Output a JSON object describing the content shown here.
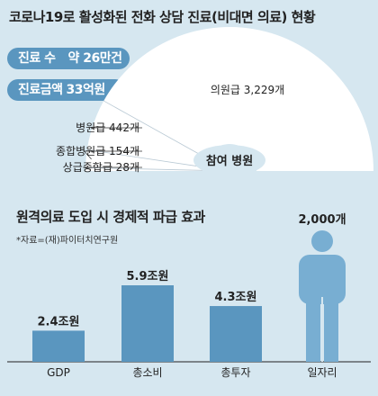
{
  "top": {
    "title": "코로나19로 활성화된 전화 상담 진료(비대면 의료) 현황",
    "pills": [
      {
        "label": "진료 수",
        "value": "약 26만건"
      },
      {
        "label": "진료금액",
        "value": "33억원"
      }
    ]
  },
  "bottom": {
    "title": "원격의료 도입 시 경제적 파급 효과",
    "source": "*자료=(재)파이터치연구원"
  },
  "colors": {
    "background": "#d6e7f0",
    "accent": "#5a96bf",
    "person": "#78aed2",
    "fan": "#ffffff"
  },
  "chart_data": [
    {
      "type": "pie",
      "subtype": "half-donut",
      "center_label": "참여 병원",
      "slices": [
        {
          "name": "의원급",
          "value": 3229,
          "label": "의원급 3,229개"
        },
        {
          "name": "병원급",
          "value": 442,
          "label": "병원급 442개"
        },
        {
          "name": "종합병원급",
          "value": 154,
          "label": "종합병원급 154개"
        },
        {
          "name": "상급종합급",
          "value": 28,
          "label": "상급종합급 28개"
        }
      ]
    },
    {
      "type": "bar",
      "categories": [
        "GDP",
        "총소비",
        "총투자",
        "일자리"
      ],
      "values": [
        2.4,
        5.9,
        4.3,
        2000
      ],
      "value_labels": [
        "2.4조원",
        "5.9조원",
        "4.3조원",
        "2,000개"
      ],
      "icon_category": "일자리",
      "icon": "person-icon"
    }
  ]
}
